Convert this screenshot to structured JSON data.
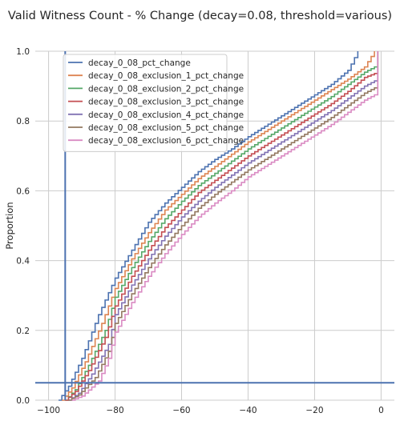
{
  "chart_data": {
    "type": "line",
    "title": "Valid Witness Count - % Change (decay=0.08, threshold=various)",
    "xlabel": "",
    "ylabel": "Proportion",
    "xlim": [
      -104,
      4
    ],
    "ylim": [
      0,
      1.0
    ],
    "xticks": [
      -100,
      -80,
      -60,
      -40,
      -20,
      0
    ],
    "yticks": [
      0.0,
      0.2,
      0.4,
      0.6,
      0.8,
      1.0
    ],
    "xtick_labels": [
      "−100",
      "−80",
      "−60",
      "−40",
      "−20",
      "0"
    ],
    "ytick_labels": [
      "0.0",
      "0.2",
      "0.4",
      "0.6",
      "0.8",
      "1.0"
    ],
    "grid": true,
    "legend_position": "upper-left",
    "reference_lines": {
      "vertical_x": -95,
      "horizontal_y": 0.05,
      "color": "#4C72B0"
    },
    "series": [
      {
        "name": "decay_0_08_pct_change",
        "color": "#4C72B0",
        "x": [
          -97,
          -94,
          -90,
          -85,
          -80,
          -75,
          -70,
          -65,
          -60,
          -55,
          -50,
          -45,
          -40,
          -35,
          -30,
          -25,
          -20,
          -15,
          -10,
          -7
        ],
        "y": [
          0.0,
          0.04,
          0.12,
          0.245,
          0.35,
          0.43,
          0.51,
          0.565,
          0.61,
          0.655,
          0.69,
          0.72,
          0.755,
          0.785,
          0.815,
          0.845,
          0.875,
          0.905,
          0.945,
          1.0
        ]
      },
      {
        "name": "decay_0_08_exclusion_1_pct_change",
        "color": "#DD8452",
        "x": [
          -96,
          -93,
          -89,
          -84,
          -80,
          -75,
          -70,
          -65,
          -60,
          -55,
          -50,
          -45,
          -40,
          -35,
          -30,
          -25,
          -20,
          -15,
          -10,
          -5,
          -2
        ],
        "y": [
          0.0,
          0.035,
          0.11,
          0.22,
          0.32,
          0.405,
          0.48,
          0.545,
          0.59,
          0.635,
          0.67,
          0.705,
          0.74,
          0.77,
          0.8,
          0.83,
          0.86,
          0.89,
          0.92,
          0.955,
          1.0
        ]
      },
      {
        "name": "decay_0_08_exclusion_2_pct_change",
        "color": "#55A868",
        "x": [
          -95,
          -92,
          -88,
          -83,
          -80,
          -75,
          -70,
          -65,
          -60,
          -55,
          -50,
          -45,
          -40,
          -35,
          -30,
          -25,
          -20,
          -15,
          -10,
          -5,
          -1
        ],
        "y": [
          0.0,
          0.03,
          0.1,
          0.2,
          0.295,
          0.38,
          0.455,
          0.52,
          0.57,
          0.615,
          0.65,
          0.685,
          0.72,
          0.75,
          0.78,
          0.81,
          0.84,
          0.87,
          0.905,
          0.94,
          0.96
        ]
      },
      {
        "name": "decay_0_08_exclusion_3_pct_change",
        "color": "#C44E52",
        "x": [
          -95,
          -92,
          -88,
          -83,
          -80,
          -75,
          -70,
          -65,
          -60,
          -55,
          -50,
          -45,
          -40,
          -35,
          -30,
          -25,
          -20,
          -15,
          -10,
          -5,
          -1
        ],
        "y": [
          0.0,
          0.025,
          0.085,
          0.18,
          0.27,
          0.355,
          0.43,
          0.495,
          0.545,
          0.595,
          0.63,
          0.665,
          0.7,
          0.73,
          0.76,
          0.79,
          0.82,
          0.85,
          0.885,
          0.925,
          0.94
        ]
      },
      {
        "name": "decay_0_08_exclusion_4_pct_change",
        "color": "#8172B3",
        "x": [
          -94,
          -91,
          -87,
          -82,
          -80,
          -75,
          -70,
          -65,
          -60,
          -55,
          -50,
          -45,
          -40,
          -35,
          -30,
          -25,
          -20,
          -15,
          -10,
          -5,
          -1
        ],
        "y": [
          0.0,
          0.02,
          0.075,
          0.16,
          0.245,
          0.33,
          0.405,
          0.47,
          0.525,
          0.57,
          0.61,
          0.645,
          0.68,
          0.71,
          0.74,
          0.77,
          0.8,
          0.83,
          0.865,
          0.9,
          0.92
        ]
      },
      {
        "name": "decay_0_08_exclusion_5_pct_change",
        "color": "#937860",
        "x": [
          -94,
          -91,
          -86,
          -82,
          -80,
          -75,
          -70,
          -65,
          -60,
          -55,
          -50,
          -45,
          -40,
          -35,
          -30,
          -25,
          -20,
          -15,
          -10,
          -5,
          -1
        ],
        "y": [
          0.0,
          0.015,
          0.065,
          0.14,
          0.22,
          0.305,
          0.38,
          0.445,
          0.5,
          0.55,
          0.59,
          0.625,
          0.66,
          0.69,
          0.72,
          0.75,
          0.78,
          0.81,
          0.845,
          0.88,
          0.9
        ]
      },
      {
        "name": "decay_0_08_exclusion_6_pct_change",
        "color": "#DA8BC3",
        "x": [
          -93,
          -90,
          -85,
          -82,
          -80,
          -75,
          -70,
          -65,
          -60,
          -55,
          -50,
          -45,
          -40,
          -35,
          -30,
          -25,
          -20,
          -15,
          -10,
          -5,
          -1
        ],
        "y": [
          0.0,
          0.012,
          0.055,
          0.12,
          0.195,
          0.28,
          0.355,
          0.42,
          0.475,
          0.525,
          0.565,
          0.6,
          0.64,
          0.67,
          0.7,
          0.73,
          0.76,
          0.79,
          0.825,
          0.86,
          0.88
        ]
      }
    ]
  }
}
